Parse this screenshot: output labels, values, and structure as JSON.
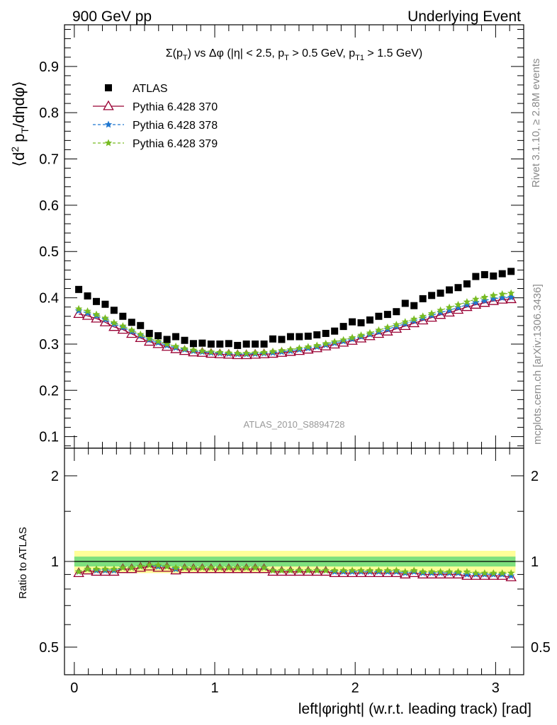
{
  "header": {
    "left": "900 GeV pp",
    "right": "Underlying Event"
  },
  "side_labels": {
    "top": "Rivet 3.1.10, ≥ 2.8M events",
    "bottom": "mcplots.cern.ch [arXiv:1306.3436]"
  },
  "watermark": "ATLAS_2010_S8894728",
  "colors": {
    "atlas": "#000000",
    "p370": "#990033",
    "p378": "#1f77d0",
    "p379": "#77bb22",
    "band_inner": "#7ee07e",
    "band_outer": "#ffff99"
  },
  "chart_data": [
    {
      "type": "scatter",
      "title": "Σ(p_T) vs Δφ (|η| < 2.5, p_T > 0.5 GeV, p_T1 > 1.5 GeV)",
      "ylabel": "⟨d² p_T/dηdφ⟩",
      "xlim": [
        -0.07,
        3.2
      ],
      "ylim": [
        0.075,
        0.99
      ],
      "yticks": [
        "0.1",
        "0.2",
        "0.3",
        "0.4",
        "0.5",
        "0.6",
        "0.7",
        "0.8",
        "0.9"
      ],
      "legend_position": "top-left",
      "x": [
        0.0314,
        0.0942,
        0.1571,
        0.2199,
        0.2827,
        0.3456,
        0.4084,
        0.4712,
        0.5341,
        0.5969,
        0.6597,
        0.7226,
        0.7854,
        0.8482,
        0.9111,
        0.9739,
        1.0367,
        1.0996,
        1.1624,
        1.2252,
        1.2881,
        1.3509,
        1.4137,
        1.4765,
        1.5394,
        1.6022,
        1.665,
        1.7279,
        1.7907,
        1.8535,
        1.9164,
        1.9792,
        2.042,
        2.1049,
        2.1677,
        2.2305,
        2.2934,
        2.3562,
        2.419,
        2.4819,
        2.5447,
        2.6075,
        2.6704,
        2.7332,
        2.796,
        2.8588,
        2.9217,
        2.9845,
        3.0473,
        3.1102
      ],
      "series": [
        {
          "name": "ATLAS",
          "marker": "square",
          "values": [
            0.418,
            0.404,
            0.392,
            0.386,
            0.373,
            0.36,
            0.347,
            0.34,
            0.323,
            0.318,
            0.31,
            0.316,
            0.308,
            0.301,
            0.302,
            0.3,
            0.3,
            0.301,
            0.297,
            0.3,
            0.3,
            0.3,
            0.311,
            0.31,
            0.316,
            0.316,
            0.317,
            0.32,
            0.323,
            0.328,
            0.338,
            0.348,
            0.346,
            0.352,
            0.36,
            0.364,
            0.37,
            0.388,
            0.383,
            0.398,
            0.405,
            0.41,
            0.417,
            0.422,
            0.43,
            0.446,
            0.45,
            0.447,
            0.452,
            0.457
          ]
        },
        {
          "name": "Pythia 6.428 370",
          "marker": "triangle",
          "values": [
            0.365,
            0.361,
            0.355,
            0.347,
            0.337,
            0.331,
            0.322,
            0.313,
            0.305,
            0.3,
            0.294,
            0.289,
            0.285,
            0.282,
            0.281,
            0.279,
            0.278,
            0.277,
            0.276,
            0.276,
            0.277,
            0.278,
            0.279,
            0.281,
            0.283,
            0.285,
            0.288,
            0.291,
            0.295,
            0.299,
            0.303,
            0.307,
            0.312,
            0.317,
            0.322,
            0.327,
            0.333,
            0.339,
            0.345,
            0.351,
            0.357,
            0.363,
            0.368,
            0.374,
            0.38,
            0.385,
            0.389,
            0.393,
            0.396,
            0.397
          ]
        },
        {
          "name": "Pythia 6.428 378",
          "marker": "star",
          "dashed": true,
          "values": [
            0.372,
            0.367,
            0.361,
            0.353,
            0.343,
            0.336,
            0.327,
            0.318,
            0.309,
            0.303,
            0.297,
            0.292,
            0.288,
            0.285,
            0.283,
            0.281,
            0.28,
            0.279,
            0.278,
            0.278,
            0.279,
            0.28,
            0.281,
            0.283,
            0.285,
            0.288,
            0.291,
            0.294,
            0.298,
            0.302,
            0.306,
            0.311,
            0.316,
            0.321,
            0.326,
            0.332,
            0.338,
            0.344,
            0.35,
            0.356,
            0.362,
            0.368,
            0.373,
            0.379,
            0.385,
            0.39,
            0.394,
            0.398,
            0.4,
            0.401
          ]
        },
        {
          "name": "Pythia 6.428 379",
          "marker": "star",
          "dashed": true,
          "values": [
            0.376,
            0.371,
            0.364,
            0.356,
            0.346,
            0.339,
            0.33,
            0.321,
            0.312,
            0.306,
            0.3,
            0.295,
            0.29,
            0.287,
            0.285,
            0.283,
            0.282,
            0.281,
            0.28,
            0.28,
            0.281,
            0.282,
            0.284,
            0.286,
            0.288,
            0.291,
            0.294,
            0.297,
            0.301,
            0.305,
            0.309,
            0.314,
            0.319,
            0.324,
            0.33,
            0.336,
            0.342,
            0.348,
            0.354,
            0.36,
            0.366,
            0.373,
            0.379,
            0.385,
            0.391,
            0.397,
            0.401,
            0.405,
            0.408,
            0.41
          ]
        }
      ]
    },
    {
      "type": "scatter",
      "xlabel": "left|φright| (w.r.t. leading track) [rad]",
      "ylabel": "Ratio to ATLAS",
      "xlim": [
        -0.07,
        3.2
      ],
      "xticks": [
        "0",
        "1",
        "2",
        "3"
      ],
      "ylim": [
        0.4,
        2.5
      ],
      "y_scale": "log",
      "yticks": [
        "0.5",
        "1",
        "2"
      ],
      "reference_band": {
        "inner": [
          0.96,
          1.04
        ],
        "outer": [
          0.91,
          1.09
        ]
      },
      "series": [
        {
          "name": "Pythia 6.428 370",
          "values": [
            0.91,
            0.93,
            0.92,
            0.92,
            0.92,
            0.94,
            0.94,
            0.95,
            0.96,
            0.95,
            0.95,
            0.93,
            0.94,
            0.94,
            0.94,
            0.94,
            0.94,
            0.94,
            0.94,
            0.94,
            0.94,
            0.94,
            0.92,
            0.92,
            0.92,
            0.92,
            0.92,
            0.92,
            0.92,
            0.91,
            0.91,
            0.91,
            0.91,
            0.91,
            0.91,
            0.91,
            0.91,
            0.9,
            0.91,
            0.9,
            0.9,
            0.9,
            0.9,
            0.9,
            0.89,
            0.89,
            0.89,
            0.89,
            0.89,
            0.88
          ]
        },
        {
          "name": "Pythia 6.428 378",
          "values": [
            0.92,
            0.94,
            0.93,
            0.93,
            0.93,
            0.95,
            0.95,
            0.96,
            0.97,
            0.96,
            0.96,
            0.94,
            0.95,
            0.95,
            0.95,
            0.95,
            0.95,
            0.95,
            0.95,
            0.95,
            0.95,
            0.95,
            0.93,
            0.93,
            0.93,
            0.93,
            0.93,
            0.93,
            0.93,
            0.92,
            0.92,
            0.92,
            0.92,
            0.92,
            0.92,
            0.92,
            0.92,
            0.91,
            0.92,
            0.91,
            0.91,
            0.91,
            0.91,
            0.91,
            0.9,
            0.9,
            0.9,
            0.9,
            0.9,
            0.89
          ]
        },
        {
          "name": "Pythia 6.428 379",
          "values": [
            0.92,
            0.94,
            0.94,
            0.94,
            0.94,
            0.95,
            0.95,
            0.96,
            0.97,
            0.97,
            0.96,
            0.95,
            0.95,
            0.95,
            0.95,
            0.95,
            0.95,
            0.95,
            0.95,
            0.95,
            0.95,
            0.95,
            0.93,
            0.93,
            0.93,
            0.93,
            0.93,
            0.93,
            0.93,
            0.93,
            0.93,
            0.93,
            0.93,
            0.93,
            0.93,
            0.93,
            0.93,
            0.92,
            0.93,
            0.92,
            0.92,
            0.92,
            0.92,
            0.92,
            0.92,
            0.91,
            0.91,
            0.91,
            0.91,
            0.91
          ]
        }
      ]
    }
  ]
}
